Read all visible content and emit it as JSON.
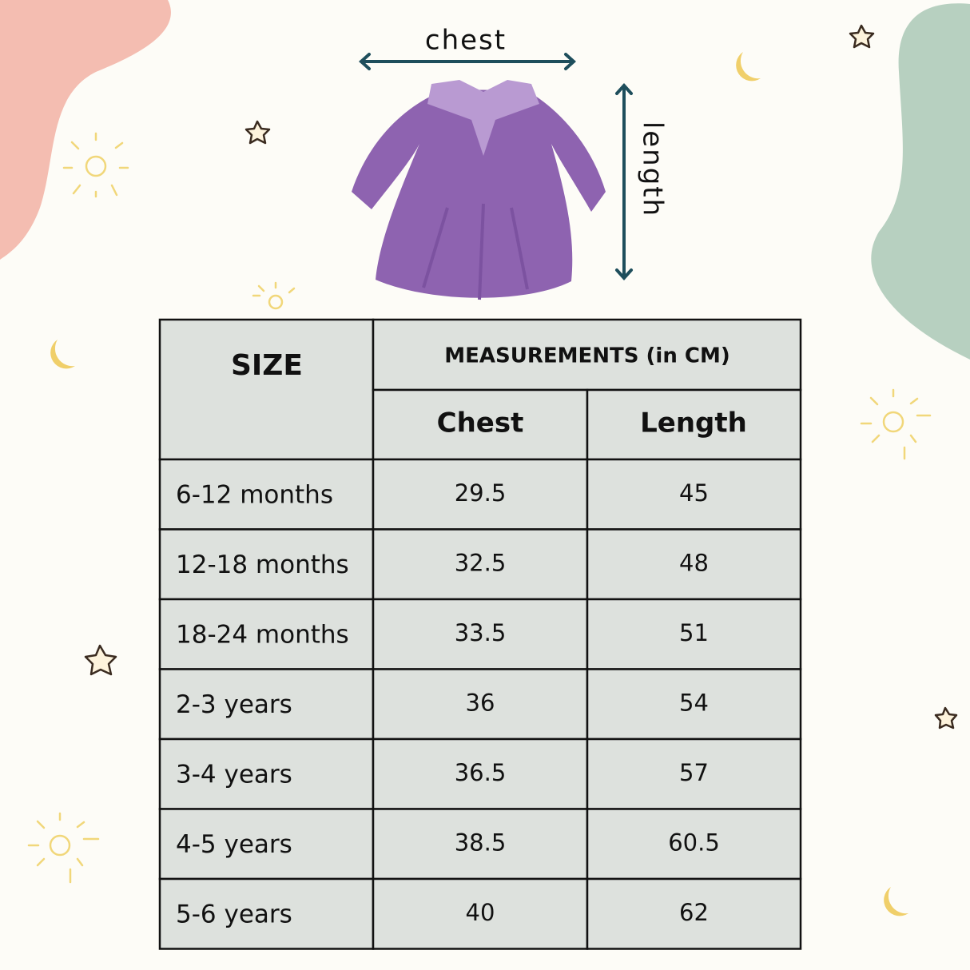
{
  "diagram": {
    "chest_label": "chest",
    "length_label": "length"
  },
  "table": {
    "header": {
      "size": "SIZE",
      "measurements": "MEASUREMENTS (in CM)",
      "chest": "Chest",
      "length": "Length"
    },
    "rows": [
      [
        "6-12 months",
        "29.5",
        "45"
      ],
      [
        "12-18 months",
        "32.5",
        "48"
      ],
      [
        "18-24 months",
        "33.5",
        "51"
      ],
      [
        "2-3 years",
        "36",
        "54"
      ],
      [
        "3-4 years",
        "36.5",
        "57"
      ],
      [
        "4-5 years",
        "38.5",
        "60.5"
      ],
      [
        "5-6 years",
        "40",
        "62"
      ]
    ]
  }
}
